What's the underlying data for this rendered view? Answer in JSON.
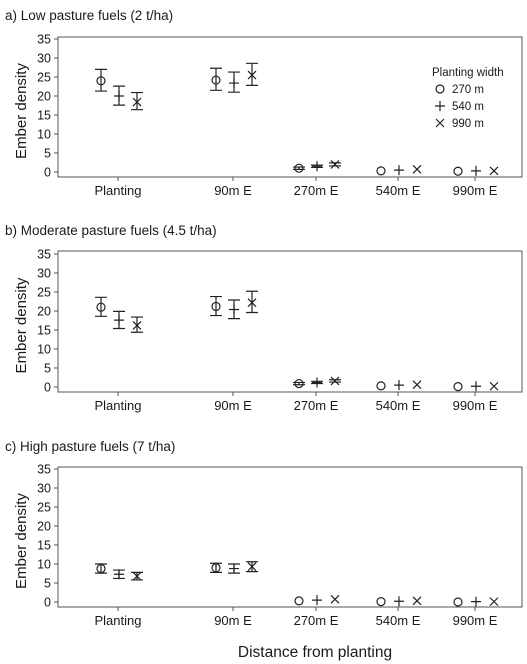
{
  "chart_data": {
    "type": "scatter",
    "xlabel": "Distance from planting",
    "ylabel": "Ember density",
    "ylim": [
      0,
      35
    ],
    "yticks": [
      0,
      5,
      10,
      15,
      20,
      25,
      30,
      35
    ],
    "categories": [
      "Planting",
      "90m E",
      "270m E",
      "540m E",
      "990m E"
    ],
    "legend": {
      "title": "Planting width",
      "placement": "top-right",
      "entries": [
        {
          "label": "270 m",
          "marker": "circle"
        },
        {
          "label": "540 m",
          "marker": "plus"
        },
        {
          "label": "990 m",
          "marker": "cross"
        }
      ]
    },
    "panels": [
      {
        "title": "a) Low pasture fuels (2 t/ha)",
        "series": [
          {
            "name": "270 m",
            "marker": "circle",
            "values": [
              24,
              24.2,
              1.0,
              0.3,
              0.2
            ],
            "lower": [
              21.3,
              21.5,
              0.7,
              0.1,
              0.1
            ],
            "upper": [
              27,
              27.3,
              1.3,
              0.5,
              0.3
            ]
          },
          {
            "name": "540 m",
            "marker": "plus",
            "values": [
              20,
              23.4,
              1.5,
              0.5,
              0.3
            ],
            "lower": [
              17.6,
              21,
              1.2,
              0.3,
              0.2
            ],
            "upper": [
              22.6,
              26.3,
              1.8,
              0.7,
              0.4
            ]
          },
          {
            "name": "990 m",
            "marker": "cross",
            "values": [
              18.4,
              25.5,
              2.0,
              0.7,
              0.3
            ],
            "lower": [
              16.4,
              22.8,
              1.6,
              0.5,
              0.2
            ],
            "upper": [
              20.9,
              28.6,
              2.4,
              0.9,
              0.4
            ]
          }
        ]
      },
      {
        "title": "b) Moderate pasture fuels (4.5 t/ha)",
        "series": [
          {
            "name": "270 m",
            "marker": "circle",
            "values": [
              21,
              21.2,
              0.9,
              0.3,
              0.1
            ],
            "lower": [
              18.6,
              18.8,
              0.6,
              0.1,
              0.0
            ],
            "upper": [
              23.6,
              23.8,
              1.2,
              0.5,
              0.2
            ]
          },
          {
            "name": "540 m",
            "marker": "plus",
            "values": [
              17.6,
              20.4,
              1.2,
              0.5,
              0.2
            ],
            "lower": [
              15.4,
              18,
              0.9,
              0.3,
              0.1
            ],
            "upper": [
              19.9,
              22.9,
              1.5,
              0.7,
              0.3
            ]
          },
          {
            "name": "990 m",
            "marker": "cross",
            "values": [
              16.2,
              22.2,
              1.6,
              0.6,
              0.2
            ],
            "lower": [
              14.4,
              19.6,
              1.3,
              0.4,
              0.1
            ],
            "upper": [
              18.4,
              25.2,
              1.9,
              0.8,
              0.3
            ]
          }
        ]
      },
      {
        "title": "c) High pasture fuels (7 t/ha)",
        "series": [
          {
            "name": "270 m",
            "marker": "circle",
            "values": [
              8.8,
              9.0,
              0.3,
              0.1,
              0.0
            ],
            "lower": [
              7.6,
              7.8,
              0.1,
              0.0,
              0.0
            ],
            "upper": [
              10,
              10.2,
              0.5,
              0.2,
              0.1
            ]
          },
          {
            "name": "540 m",
            "marker": "plus",
            "values": [
              7.3,
              8.8,
              0.5,
              0.2,
              0.1
            ],
            "lower": [
              6.2,
              7.6,
              0.3,
              0.1,
              0.0
            ],
            "upper": [
              8.4,
              10,
              0.7,
              0.3,
              0.2
            ]
          },
          {
            "name": "990 m",
            "marker": "cross",
            "values": [
              6.8,
              9.3,
              0.7,
              0.3,
              0.1
            ],
            "lower": [
              5.8,
              8.0,
              0.5,
              0.1,
              0.0
            ],
            "upper": [
              7.8,
              10.6,
              0.9,
              0.4,
              0.2
            ]
          }
        ]
      }
    ]
  }
}
